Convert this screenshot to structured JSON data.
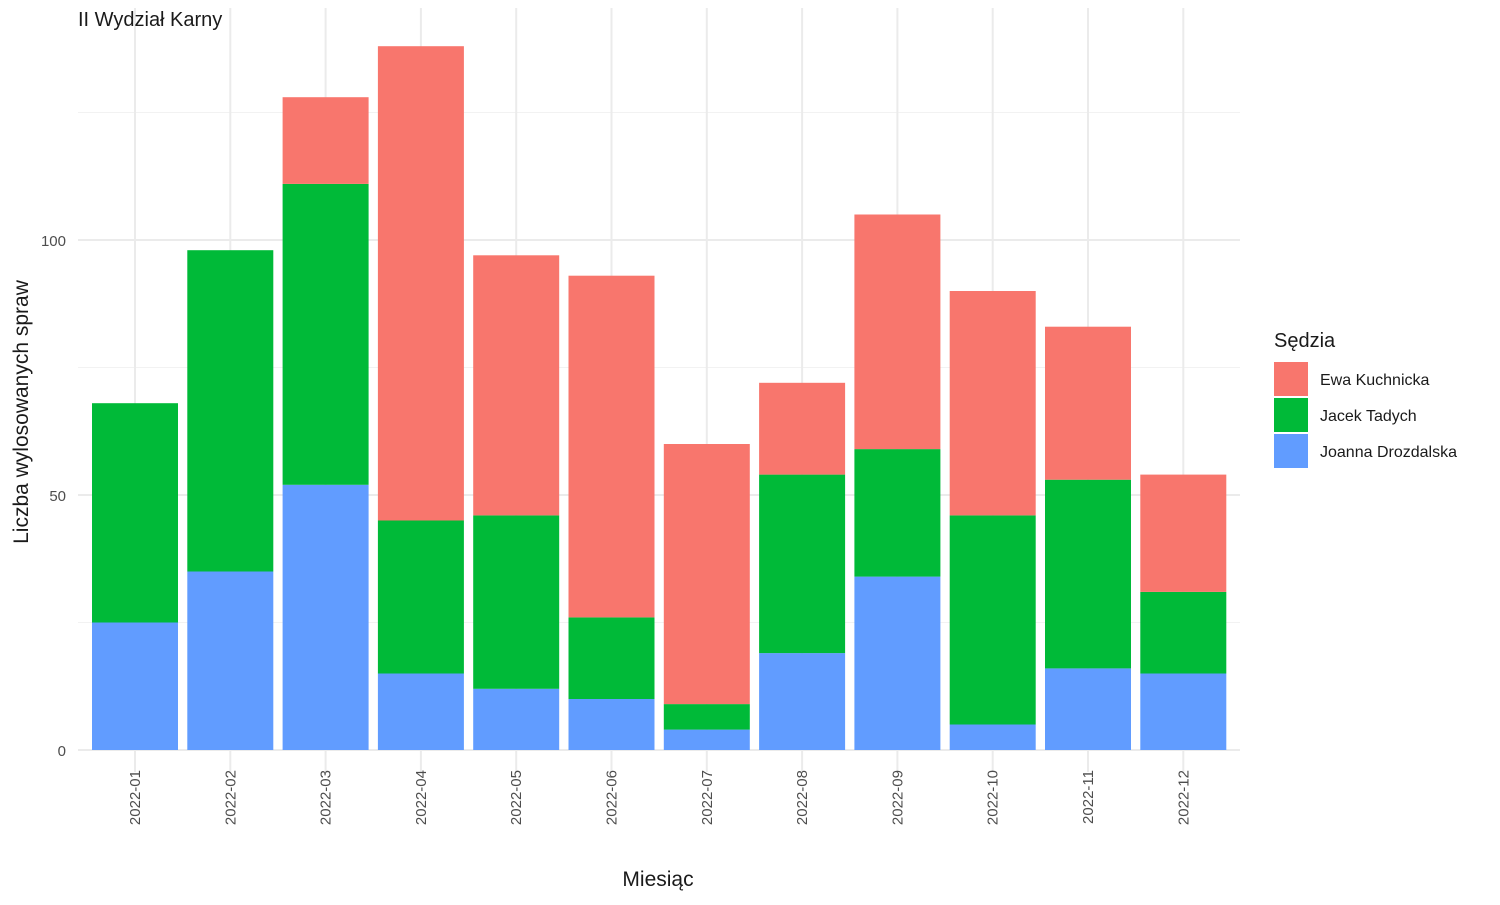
{
  "chart_data": {
    "type": "bar",
    "stacked": true,
    "title": "II Wydział Karny",
    "xlabel": "Miesiąc",
    "ylabel": "Liczba wylosowanych spraw",
    "ylim": [
      0,
      140
    ],
    "yticks": [
      0,
      50,
      100
    ],
    "grid": true,
    "categories": [
      "2022-01",
      "2022-02",
      "2022-03",
      "2022-04",
      "2022-05",
      "2022-06",
      "2022-07",
      "2022-08",
      "2022-09",
      "2022-10",
      "2022-11",
      "2022-12"
    ],
    "series": [
      {
        "name": "Joanna Drozdalska",
        "color": "#619CFF",
        "values": [
          25,
          35,
          52,
          15,
          12,
          10,
          4,
          19,
          34,
          5,
          16,
          15
        ]
      },
      {
        "name": "Jacek Tadych",
        "color": "#00BA38",
        "values": [
          43,
          63,
          59,
          30,
          34,
          16,
          5,
          35,
          25,
          41,
          37,
          16
        ]
      },
      {
        "name": "Ewa Kuchnicka",
        "color": "#F8766D",
        "values": [
          0,
          0,
          17,
          93,
          51,
          67,
          51,
          18,
          46,
          44,
          30,
          23
        ]
      }
    ],
    "legend": {
      "title": "Sędzia",
      "position": "right",
      "entries": [
        "Ewa Kuchnicka",
        "Jacek Tadych",
        "Joanna Drozdalska"
      ]
    }
  }
}
